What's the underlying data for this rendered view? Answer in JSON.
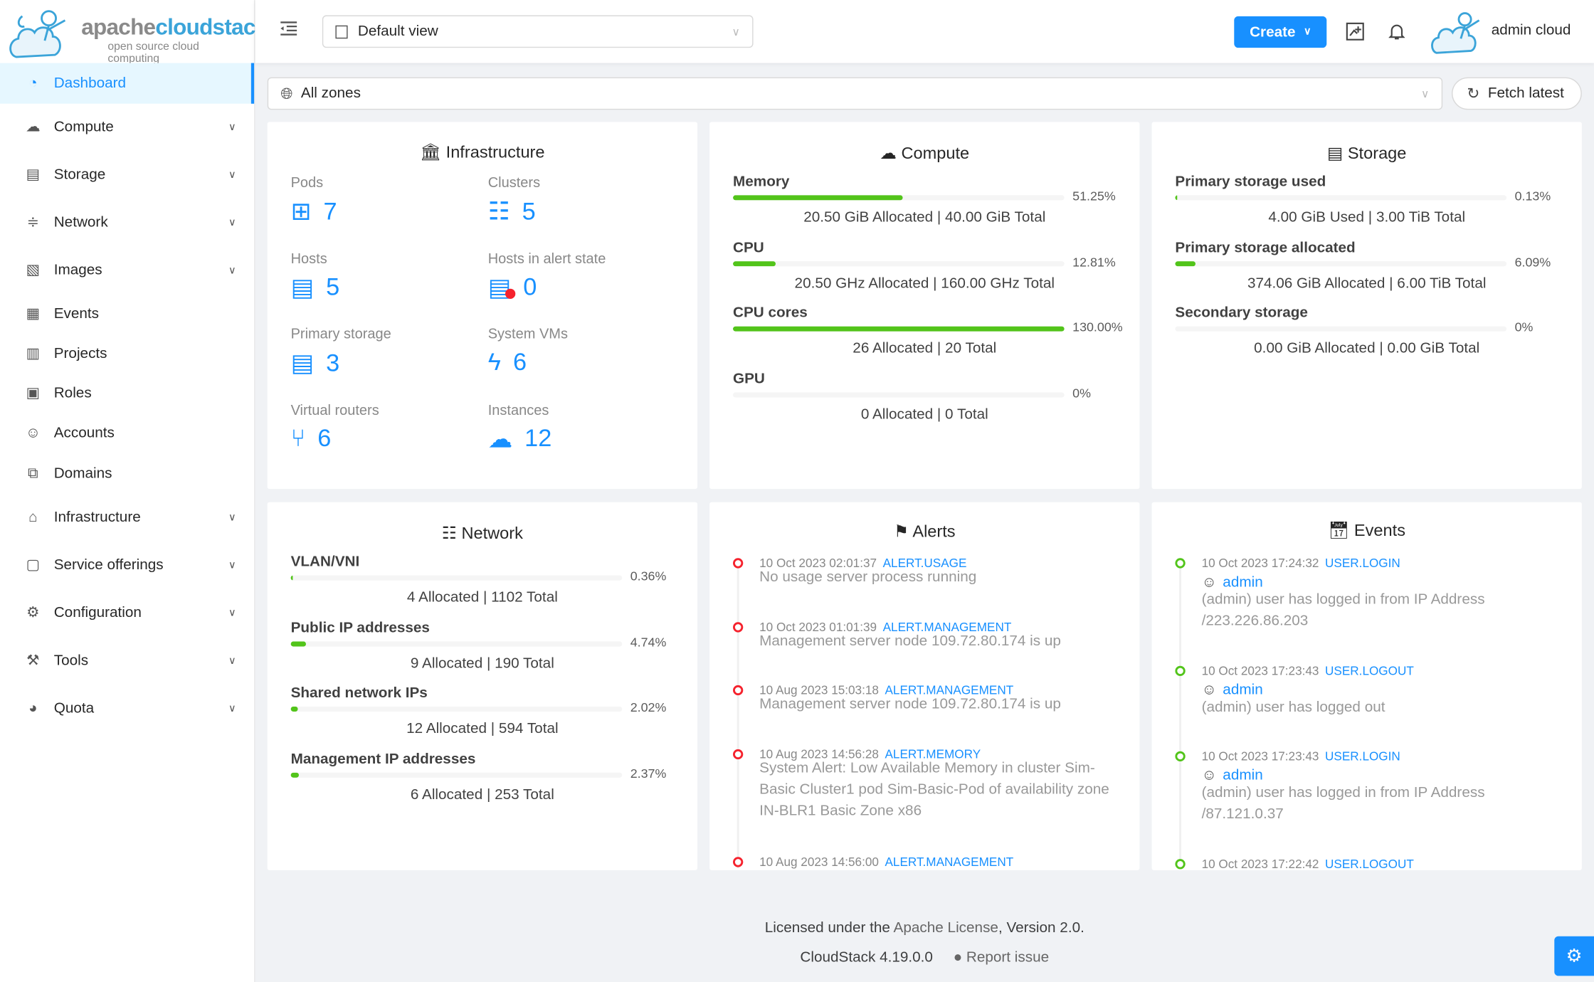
{
  "logo": {
    "brand_a": "apache",
    "brand_b": "cloudstack",
    "tagline": "open source cloud computing"
  },
  "sidebar": {
    "items": [
      {
        "label": "Dashboard",
        "icon": "dashboard-icon",
        "active": true,
        "expandable": false
      },
      {
        "label": "Compute",
        "icon": "cloud-icon",
        "expandable": true
      },
      {
        "label": "Storage",
        "icon": "database-icon",
        "expandable": true
      },
      {
        "label": "Network",
        "icon": "wifi-icon",
        "expandable": true
      },
      {
        "label": "Images",
        "icon": "picture-icon",
        "expandable": true
      },
      {
        "label": "Events",
        "icon": "schedule-icon",
        "expandable": false
      },
      {
        "label": "Projects",
        "icon": "project-icon",
        "expandable": false
      },
      {
        "label": "Roles",
        "icon": "idcard-icon",
        "expandable": false
      },
      {
        "label": "Accounts",
        "icon": "team-icon",
        "expandable": false
      },
      {
        "label": "Domains",
        "icon": "block-icon",
        "expandable": false
      },
      {
        "label": "Infrastructure",
        "icon": "bank-icon",
        "expandable": true
      },
      {
        "label": "Service offerings",
        "icon": "shopping-icon",
        "expandable": true
      },
      {
        "label": "Configuration",
        "icon": "setting-icon",
        "expandable": true
      },
      {
        "label": "Tools",
        "icon": "tool-icon",
        "expandable": true
      },
      {
        "label": "Quota",
        "icon": "pie-chart-icon",
        "expandable": true
      }
    ]
  },
  "header": {
    "view_select": "Default view",
    "create_label": "Create",
    "user_name": "admin cloud"
  },
  "zone_select": "All zones",
  "fetch_label": "Fetch latest",
  "infrastructure": {
    "title": "Infrastructure",
    "items": [
      {
        "label": "Pods",
        "value": "7",
        "icon": "appstore-icon"
      },
      {
        "label": "Clusters",
        "value": "5",
        "icon": "cluster-icon"
      },
      {
        "label": "Hosts",
        "value": "5",
        "icon": "database-icon"
      },
      {
        "label": "Hosts in alert state",
        "value": "0",
        "icon": "database-alert-icon"
      },
      {
        "label": "Primary storage",
        "value": "3",
        "icon": "database-icon"
      },
      {
        "label": "System VMs",
        "value": "6",
        "icon": "thunderbolt-icon"
      },
      {
        "label": "Virtual routers",
        "value": "6",
        "icon": "fork-icon"
      },
      {
        "label": "Instances",
        "value": "12",
        "icon": "cloud-server-icon"
      }
    ]
  },
  "compute": {
    "title": "Compute",
    "rows": [
      {
        "label": "Memory",
        "percent": 51.25,
        "pct_text": "51.25%",
        "detail": "20.50 GiB Allocated | 40.00 GiB Total"
      },
      {
        "label": "CPU",
        "percent": 12.81,
        "pct_text": "12.81%",
        "detail": "20.50 GHz Allocated | 160.00 GHz Total"
      },
      {
        "label": "CPU cores",
        "percent": 130,
        "pct_text": "130.00%",
        "detail": "26 Allocated | 20 Total"
      },
      {
        "label": "GPU",
        "percent": 0,
        "pct_text": "0%",
        "detail": "0 Allocated | 0 Total"
      }
    ]
  },
  "storage": {
    "title": "Storage",
    "rows": [
      {
        "label": "Primary storage used",
        "percent": 0.13,
        "pct_text": "0.13%",
        "detail": "4.00 GiB Used | 3.00 TiB Total"
      },
      {
        "label": "Primary storage allocated",
        "percent": 6.09,
        "pct_text": "6.09%",
        "detail": "374.06 GiB Allocated | 6.00 TiB Total"
      },
      {
        "label": "Secondary storage",
        "percent": 0,
        "pct_text": "0%",
        "detail": "0.00 GiB Allocated | 0.00 GiB Total"
      }
    ]
  },
  "network": {
    "title": "Network",
    "rows": [
      {
        "label": "VLAN/VNI",
        "percent": 0.36,
        "pct_text": "0.36%",
        "detail": "4 Allocated | 1102 Total"
      },
      {
        "label": "Public IP addresses",
        "percent": 4.74,
        "pct_text": "4.74%",
        "detail": "9 Allocated | 190 Total"
      },
      {
        "label": "Shared network IPs",
        "percent": 2.02,
        "pct_text": "2.02%",
        "detail": "12 Allocated | 594 Total"
      },
      {
        "label": "Management IP addresses",
        "percent": 2.37,
        "pct_text": "2.37%",
        "detail": "6 Allocated | 253 Total"
      }
    ]
  },
  "alerts": {
    "title": "Alerts",
    "items": [
      {
        "time": "10 Oct 2023 02:01:37",
        "type": "ALERT.USAGE",
        "desc": "No usage server process running"
      },
      {
        "time": "10 Oct 2023 01:01:39",
        "type": "ALERT.MANAGEMENT",
        "desc": "Management server node 109.72.80.174 is up"
      },
      {
        "time": "10 Aug 2023 15:03:18",
        "type": "ALERT.MANAGEMENT",
        "desc": "Management server node 109.72.80.174 is up"
      },
      {
        "time": "10 Aug 2023 14:56:28",
        "type": "ALERT.MEMORY",
        "desc": "System Alert: Low Available Memory in cluster Sim-Basic Cluster1 pod Sim-Basic-Pod of availability zone IN-BLR1 Basic Zone x86"
      },
      {
        "time": "10 Aug 2023 14:56:00",
        "type": "ALERT.MANAGEMENT",
        "desc": ""
      }
    ]
  },
  "events": {
    "title": "Events",
    "items": [
      {
        "time": "10 Oct 2023 17:24:32",
        "type": "USER.LOGIN",
        "user": "admin",
        "desc": "(admin) user has logged in from IP Address /223.226.86.203"
      },
      {
        "time": "10 Oct 2023 17:23:43",
        "type": "USER.LOGOUT",
        "user": "admin",
        "desc": "(admin) user has logged out"
      },
      {
        "time": "10 Oct 2023 17:23:43",
        "type": "USER.LOGIN",
        "user": "admin",
        "desc": "(admin) user has logged in from IP Address /87.121.0.37"
      },
      {
        "time": "10 Oct 2023 17:22:42",
        "type": "USER.LOGOUT",
        "user": "",
        "desc": ""
      }
    ]
  },
  "footer": {
    "license_prefix": "Licensed under the ",
    "license_link": "Apache License",
    "license_suffix": ", Version 2.0.",
    "version": "CloudStack 4.19.0.0",
    "report_issue": "Report issue"
  },
  "colors": {
    "primary": "#1890ff",
    "success": "#52c41a",
    "error": "#f5222d",
    "background": "#f0f2f5"
  }
}
